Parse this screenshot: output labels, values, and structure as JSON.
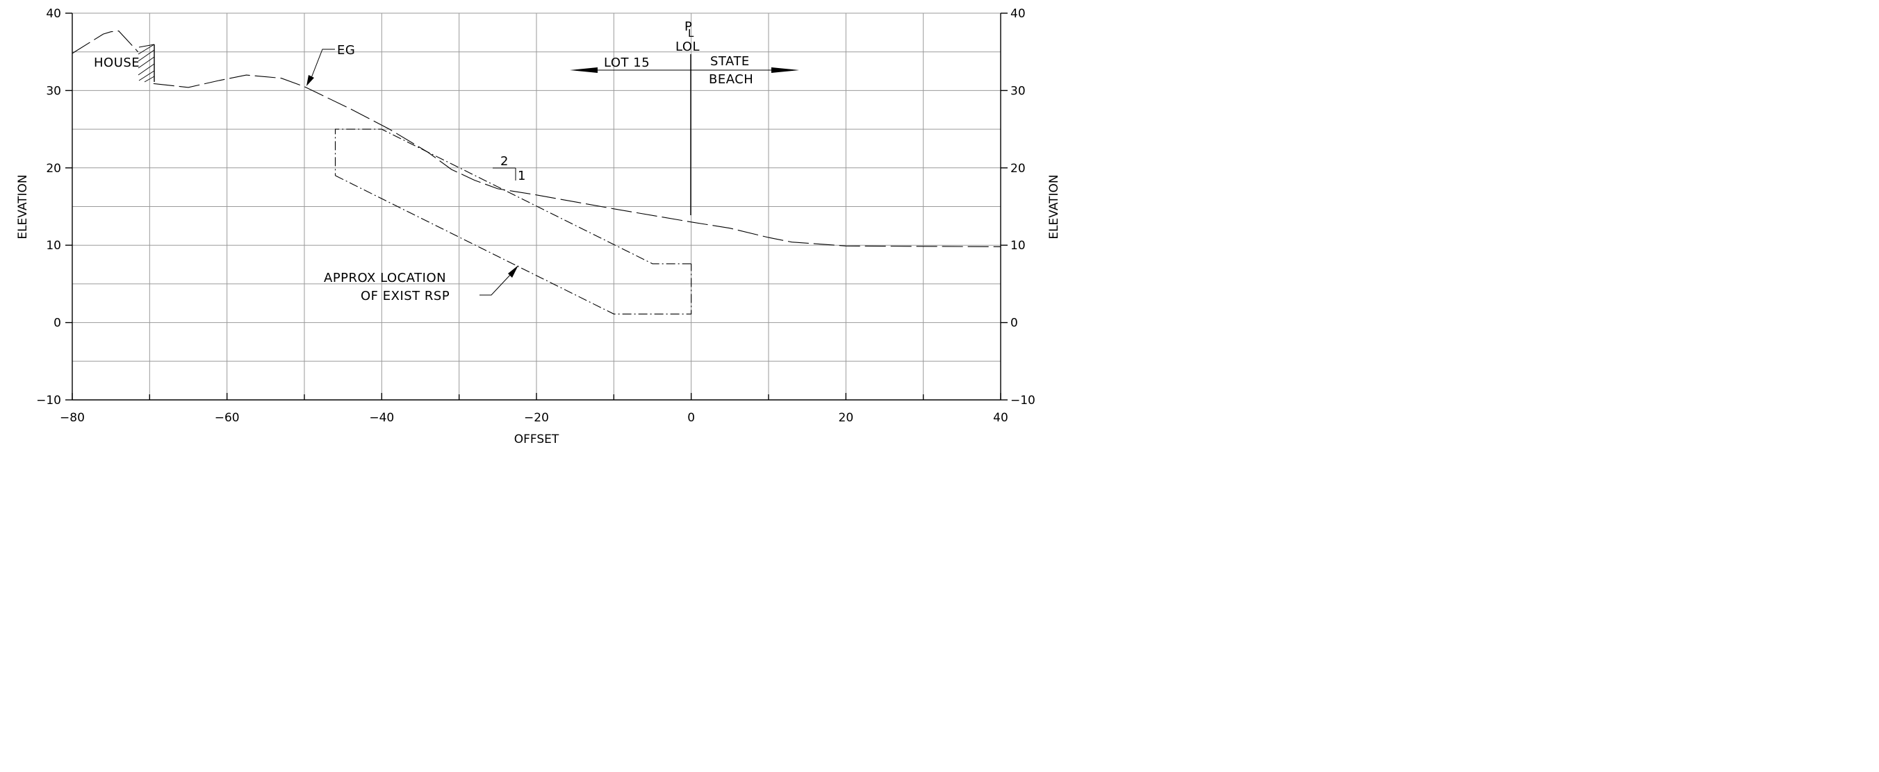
{
  "chart_data": {
    "type": "line",
    "xlabel": "OFFSET",
    "ylabel_left": "ELEVATION",
    "ylabel_right": "ELEVATION",
    "xlim": [
      -80,
      40
    ],
    "ylim": [
      -10,
      40
    ],
    "x_ticks": [
      "−80",
      "−60",
      "−40",
      "−20",
      "0",
      "20",
      "40"
    ],
    "y_ticks_left": [
      "40",
      "30",
      "20",
      "10",
      "0",
      "−10"
    ],
    "y_ticks_right": [
      "40",
      "30",
      "20",
      "10",
      "0",
      "−10"
    ],
    "grid": true,
    "series": [
      {
        "name": "EG",
        "style": "long-dash",
        "points": [
          [
            -69.5,
            30.9
          ],
          [
            -65,
            30.4
          ],
          [
            -61,
            31.3
          ],
          [
            -57.5,
            32.0
          ],
          [
            -53,
            31.6
          ],
          [
            -50,
            30.5
          ],
          [
            -44,
            27.6
          ],
          [
            -39,
            25.0
          ],
          [
            -34,
            22.0
          ],
          [
            -31,
            19.8
          ],
          [
            -28,
            18.4
          ],
          [
            -25,
            17.3
          ],
          [
            -20,
            16.5
          ],
          [
            -10,
            14.7
          ],
          [
            0,
            13.0
          ],
          [
            5,
            12.2
          ],
          [
            10,
            11.0
          ],
          [
            13,
            10.4
          ],
          [
            20,
            9.9
          ],
          [
            40,
            9.8
          ]
        ]
      },
      {
        "name": "EG (upslope)",
        "style": "long-dash",
        "points": [
          [
            -80,
            34.8
          ],
          [
            -76,
            37.3
          ],
          [
            -75,
            37.6
          ],
          [
            -74,
            37.7
          ],
          [
            -71.5,
            35.0
          ]
        ]
      },
      {
        "name": "APPROX LOCATION OF EXIST RSP (outer)",
        "style": "dash-dot",
        "points": [
          [
            0,
            7.6
          ],
          [
            -5,
            7.6
          ],
          [
            -40,
            25.0
          ],
          [
            -46,
            25.0
          ],
          [
            -46,
            19.0
          ]
        ]
      },
      {
        "name": "APPROX LOCATION OF EXIST RSP (inner)",
        "style": "dash-dot",
        "points": [
          [
            -46,
            19.0
          ],
          [
            -10,
            1.1
          ],
          [
            0,
            1.1
          ],
          [
            0,
            7.6
          ]
        ]
      }
    ],
    "annotations": {
      "house": "HOUSE",
      "eg_label": "EG",
      "pl_symbol_p": "P",
      "pl_symbol_l": "L",
      "lol": "LOL",
      "lot": "LOT 15",
      "state_line1": "STATE",
      "state_line2": "BEACH",
      "slope_run": "2",
      "slope_rise": "1",
      "rsp_line1": "APPROX LOCATION",
      "rsp_line2": "OF EXIST RSP"
    }
  }
}
